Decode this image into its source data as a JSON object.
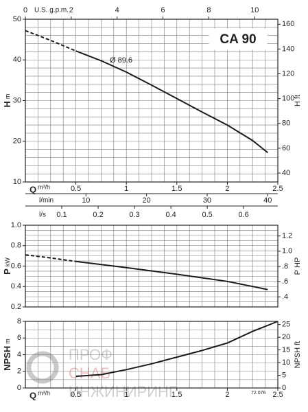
{
  "chart_data": [
    {
      "type": "line",
      "title": "CA 90",
      "annotation": "Ø 89.6",
      "xlabel": "Q",
      "xunit": "m³/h",
      "xlim": [
        0,
        2.5
      ],
      "xticks": [
        0.5,
        1,
        1.5,
        2,
        2.5
      ],
      "top_axis": {
        "label": "U.S. g.p.m.",
        "xlim": [
          0,
          11.01
        ],
        "xticks": [
          0,
          2,
          4,
          6,
          8,
          10
        ]
      },
      "bottom_axes": [
        {
          "label": "l/min",
          "xlim": [
            0,
            41.67
          ],
          "xticks": [
            10,
            20,
            30,
            40
          ]
        },
        {
          "label": "l/s",
          "xlim": [
            0,
            0.694
          ],
          "xticks": [
            0.1,
            0.2,
            0.3,
            0.4,
            0.5,
            0.6
          ]
        }
      ],
      "ylabel": "H",
      "yunit": "m",
      "ylim": [
        10,
        50
      ],
      "yticks": [
        10,
        20,
        30,
        40,
        50
      ],
      "y2label": "H",
      "y2unit": "ft",
      "y2lim": [
        32.81,
        164.04
      ],
      "y2ticks": [
        40,
        60,
        80,
        100,
        120,
        140,
        160
      ],
      "grid": true,
      "x": [
        0,
        0.25,
        0.5,
        0.75,
        1,
        1.25,
        1.5,
        1.75,
        2,
        2.25,
        2.4
      ],
      "series": [
        {
          "color": "#1a1a1a",
          "dashed": true,
          "values": [
            47.2,
            44.8,
            42.2,
            null,
            null,
            null,
            null,
            null,
            null,
            null,
            null
          ]
        },
        {
          "color": "#1a1a1a",
          "values": [
            null,
            null,
            42.2,
            39.8,
            37,
            33.8,
            30.5,
            27.2,
            24,
            20.2,
            17.2
          ]
        }
      ]
    },
    {
      "type": "line",
      "xlim": [
        0,
        2.5
      ],
      "ylabel": "P",
      "yunit": "kW",
      "ylim": [
        0.2,
        1.0
      ],
      "yticks": [
        0.2,
        0.4,
        0.6,
        0.8,
        {
          "value": 1,
          "label": "1.0"
        }
      ],
      "y2label": "P",
      "y2unit": "HP",
      "y2lim": [
        0.268,
        1.341
      ],
      "y2ticks": [
        {
          "value": 0.4,
          "label": ".4"
        },
        {
          "value": 0.6,
          "label": ".6"
        },
        {
          "value": 0.8,
          "label": ".8"
        },
        {
          "value": 1,
          "label": "1.0"
        },
        1.2
      ],
      "grid": true,
      "x": [
        0,
        0.25,
        0.5,
        1,
        1.5,
        2,
        2.4
      ],
      "series": [
        {
          "color": "#1a1a1a",
          "dashed": true,
          "values": [
            0.71,
            0.68,
            0.645,
            null,
            null,
            null,
            null
          ]
        },
        {
          "color": "#1a1a1a",
          "values": [
            null,
            null,
            0.645,
            0.585,
            0.52,
            0.45,
            0.37
          ]
        }
      ]
    },
    {
      "type": "line",
      "code": "72.076",
      "xlabel": "Q",
      "xunit": "m³/h",
      "xlim": [
        0,
        2.5
      ],
      "xticks": [
        0.5,
        1,
        1.5,
        2,
        2.5
      ],
      "ylabel": "NPSH",
      "yunit": "m",
      "ylim": [
        0,
        8
      ],
      "yticks": [
        0,
        2,
        4,
        6,
        8
      ],
      "y2label": "NPSH",
      "y2unit": "ft",
      "y2lim": [
        0,
        26.25
      ],
      "y2ticks": [
        0,
        5,
        10,
        15,
        20,
        25
      ],
      "grid": true,
      "x": [
        0.5,
        0.75,
        1,
        1.25,
        1.5,
        1.75,
        2,
        2.25,
        2.5
      ],
      "series": [
        {
          "color": "#1a1a1a",
          "values": [
            1.4,
            1.6,
            2.2,
            2.9,
            3.7,
            4.5,
            5.4,
            6.8,
            8.0
          ]
        }
      ]
    }
  ],
  "watermark": [
    "ПРОФ",
    "СНАБ",
    "ИНЖИНИРИНГ"
  ]
}
